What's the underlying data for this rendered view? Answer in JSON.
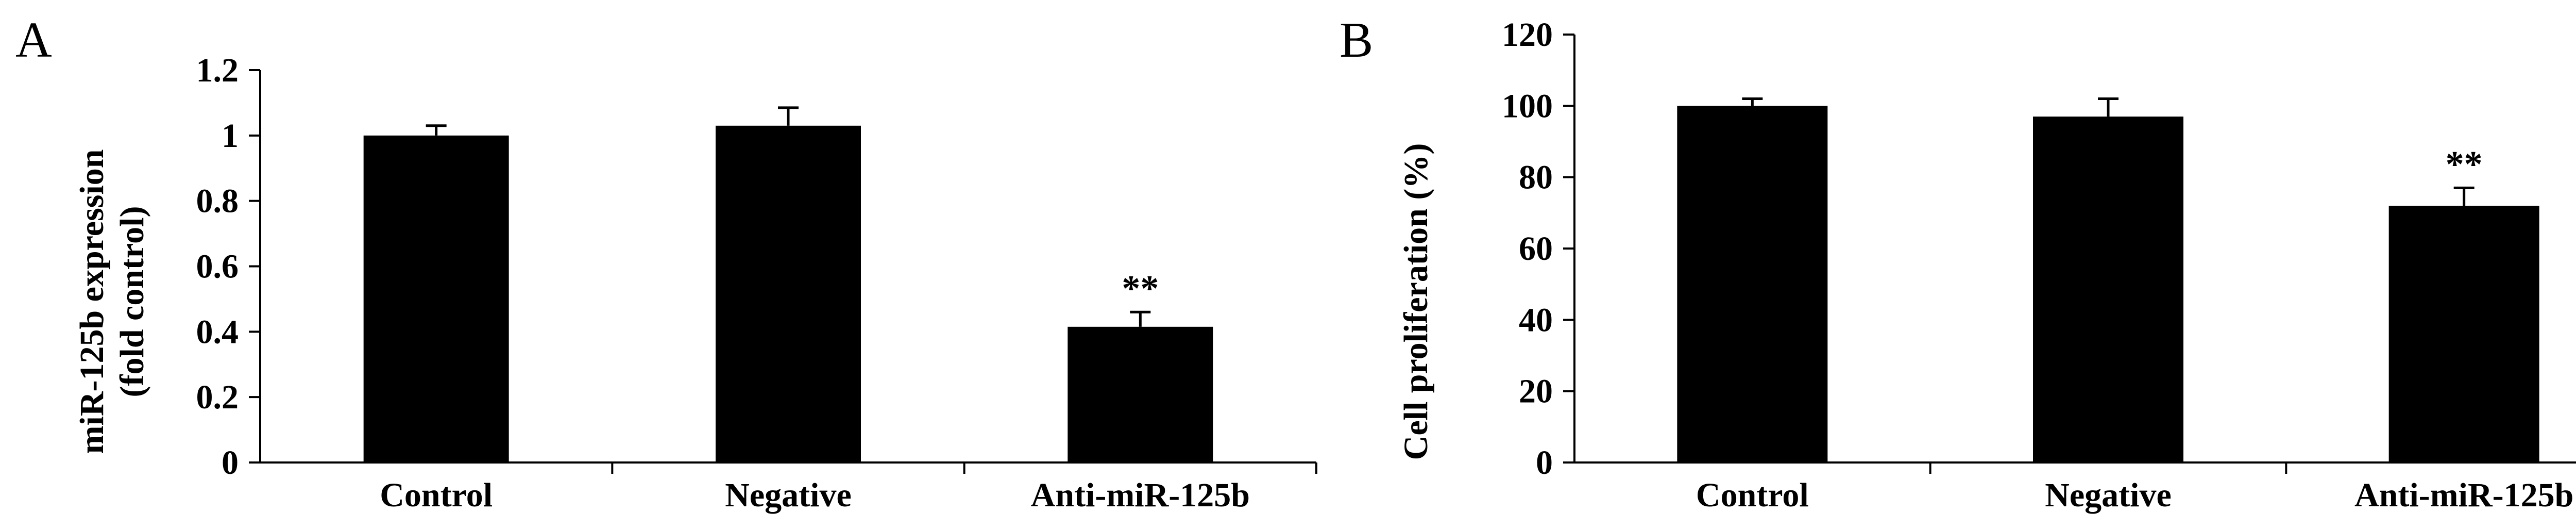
{
  "chart_data": [
    {
      "type": "bar",
      "panel": "A",
      "categories": [
        "Control",
        "Negative",
        "Anti-miR-125b"
      ],
      "values": [
        1.0,
        1.03,
        0.415
      ],
      "errors": [
        0.03,
        0.055,
        0.045
      ],
      "annotations": [
        "",
        "",
        "**"
      ],
      "ylabel_lines": [
        "miR-125b expression",
        "(fold control)"
      ],
      "xlabel": "",
      "ylim": [
        0,
        1.2
      ],
      "yticks": [
        0,
        0.2,
        0.4,
        0.6,
        0.8,
        1,
        1.2
      ],
      "ytick_labels": [
        "0",
        "0.2",
        "0.4",
        "0.6",
        "0.8",
        "1",
        "1.2"
      ],
      "bar_color": "#000000",
      "grid": false
    },
    {
      "type": "bar",
      "panel": "B",
      "categories": [
        "Control",
        "Negative",
        "Anti-miR-125b"
      ],
      "values": [
        100,
        97,
        72
      ],
      "errors": [
        2,
        5,
        5
      ],
      "annotations": [
        "",
        "",
        "**"
      ],
      "ylabel_lines": [
        "Cell proliferation (%)"
      ],
      "xlabel": "",
      "ylim": [
        0,
        120
      ],
      "yticks": [
        0,
        20,
        40,
        60,
        80,
        100,
        120
      ],
      "ytick_labels": [
        "0",
        "20",
        "40",
        "60",
        "80",
        "100",
        "120"
      ],
      "bar_color": "#000000",
      "grid": false
    }
  ]
}
